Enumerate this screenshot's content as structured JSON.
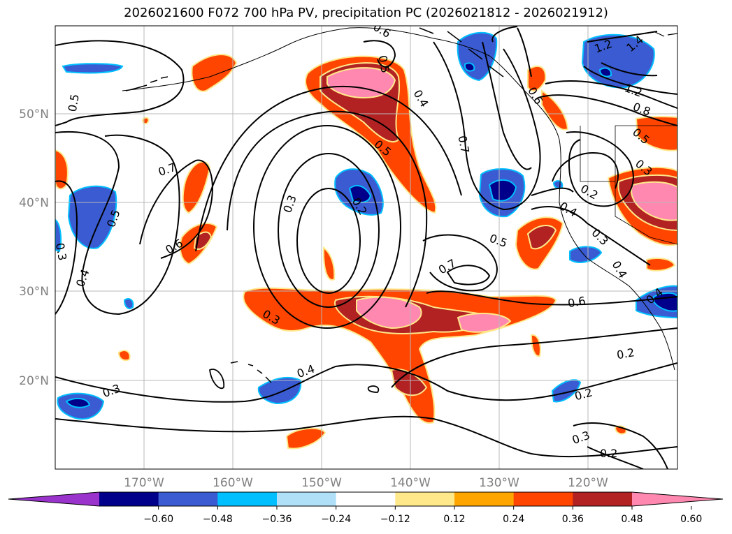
{
  "title": "2026021600 F072 700 hPa PV, precipitation PC (2026021812 - 2026021912)",
  "lat_labels": [
    "50°N",
    "40°N",
    "30°N",
    "20°N"
  ],
  "lon_labels": [
    "170°W",
    "160°W",
    "150°W",
    "140°W",
    "130°W",
    "120°W"
  ],
  "colorbar": {
    "ticks": [
      "−0.60",
      "−0.48",
      "−0.36",
      "−0.24",
      "−0.12",
      "0.12",
      "0.24",
      "0.36",
      "0.48",
      "0.60"
    ],
    "colors": [
      "#9933cc",
      "#00008b",
      "#3a5bd1",
      "#00bfff",
      "#b0e0f8",
      "#ffffff",
      "#ffe88a",
      "#ffa500",
      "#ff4500",
      "#b22222",
      "#ff88b0"
    ]
  },
  "contour_labels": [
    "0.5",
    "0.7",
    "0.6",
    "0.5",
    "0.4",
    "0.3",
    "0.3",
    "0.3",
    "0.2",
    "0.5",
    "0.4",
    "0.6",
    "0.5",
    "0.7",
    "0.4",
    "0.7",
    "0.5",
    "0.6",
    "0.2",
    "0.2",
    "0.3",
    "0.2",
    "0.4",
    "0.2",
    "0.3",
    "0.4",
    "1.2",
    "1.4",
    "1.2",
    "0.8",
    "0.5",
    "0.3",
    "0.4",
    "0.3",
    "0.6"
  ],
  "map": {
    "region": "North Pacific",
    "contour_field": "700 hPa PV",
    "shaded_field": "precipitation PC"
  }
}
